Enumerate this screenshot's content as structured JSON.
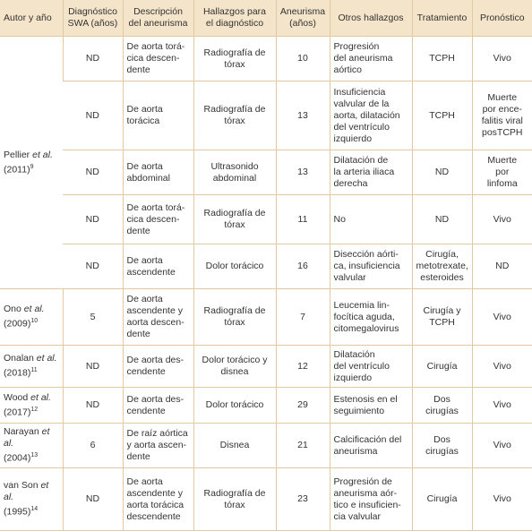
{
  "header": [
    [
      "Autor y año"
    ],
    [
      "Diagnóstico",
      "SWA (años)"
    ],
    [
      "Descripción",
      "del aneurisma"
    ],
    [
      "Hallazgos para",
      "el diagnóstico"
    ],
    [
      "Aneurisma",
      "(años)"
    ],
    [
      "Otros hallazgos"
    ],
    [
      "Tratamiento"
    ],
    [
      "Pronóstico"
    ]
  ],
  "groups": [
    {
      "author": {
        "name": "Pellier",
        "etal": "et al.",
        "year": "(2011)",
        "ref": "9"
      },
      "rows": [
        [
          "ND",
          [
            "De aorta torá-",
            "cica descen-",
            "dente"
          ],
          [
            "Radiografía de",
            "tórax"
          ],
          10,
          [
            "Progresión",
            "del aneurisma",
            "aórtico"
          ],
          [
            "TCPH"
          ],
          [
            "Vivo"
          ]
        ],
        [
          "ND",
          [
            "De aorta",
            "torácica"
          ],
          [
            "Radiografía de",
            "tórax"
          ],
          13,
          [
            "Insuficiencia",
            "valvular de la",
            "aorta, dilatación",
            "del ventrículo",
            "izquierdo"
          ],
          [
            "TCPH"
          ],
          [
            "Muerte",
            "por ence-",
            "falitis viral",
            "posTCPH"
          ]
        ],
        [
          "ND",
          [
            "De aorta",
            "abdominal"
          ],
          [
            "Ultrasonido",
            "abdominal"
          ],
          13,
          [
            "Dilatación de",
            "la arteria iliaca",
            "derecha"
          ],
          [
            "ND"
          ],
          [
            "Muerte",
            "por",
            "linfoma"
          ]
        ],
        [
          "ND",
          [
            "De aorta torá-",
            "cica descen-",
            "dente"
          ],
          [
            "Radiografía de",
            "tórax"
          ],
          11,
          [
            "No"
          ],
          [
            "ND"
          ],
          [
            "Vivo"
          ]
        ],
        [
          "ND",
          [
            "De aorta",
            "ascendente"
          ],
          [
            "Dolor torácico"
          ],
          16,
          [
            "Disección aórti-",
            "ca, insuficiencia",
            "valvular"
          ],
          [
            "Cirugía,",
            "metotrexate,",
            "esteroides"
          ],
          [
            "ND"
          ]
        ]
      ]
    },
    {
      "author": {
        "name": "Ono",
        "etal": "et al.",
        "year": "(2009)",
        "ref": "10"
      },
      "rows": [
        [
          5,
          [
            "De aorta",
            "ascendente y",
            "aorta descen-",
            "dente"
          ],
          [
            "Radiografía de",
            "tórax"
          ],
          7,
          [
            "Leucemia lin-",
            "focítica aguda,",
            "citomegalovirus"
          ],
          [
            "Cirugía y",
            "TCPH"
          ],
          [
            "Vivo"
          ]
        ]
      ]
    },
    {
      "author": {
        "name": "Onalan",
        "etal": "et al.",
        "year": "(2018)",
        "ref": "11"
      },
      "rows": [
        [
          "ND",
          [
            "De aorta des-",
            "cendente"
          ],
          [
            "Dolor torácico y",
            "disnea"
          ],
          12,
          [
            "Dilatación",
            "del ventrículo",
            "izquierdo"
          ],
          [
            "Cirugía"
          ],
          [
            "Vivo"
          ]
        ]
      ]
    },
    {
      "author": {
        "name": "Wood",
        "etal": "et al.",
        "year": "(2017)",
        "ref": "12"
      },
      "rows": [
        [
          "ND",
          [
            "De aorta des-",
            "cendente"
          ],
          [
            "Dolor torácico"
          ],
          29,
          [
            "Estenosis en el",
            "seguimiento"
          ],
          [
            "Dos cirugías"
          ],
          [
            "Vivo"
          ]
        ]
      ]
    },
    {
      "author": {
        "name": "Narayan",
        "etal": "et al.",
        "year": "(2004)",
        "ref": "13"
      },
      "rows": [
        [
          6,
          [
            "De raíz aórtica",
            "y aorta ascen-",
            "dente"
          ],
          [
            "Disnea"
          ],
          21,
          [
            "Calcificación del",
            "aneurisma"
          ],
          [
            "Dos cirugías"
          ],
          [
            "Vivo"
          ]
        ]
      ]
    },
    {
      "author": {
        "name": "van Son",
        "etal": "et al.",
        "year": "(1995)",
        "ref": "14"
      },
      "rows": [
        [
          "ND",
          [
            "De aorta",
            "ascendente y",
            "aorta torácica",
            "descendente"
          ],
          [
            "Radiografía de",
            "tórax"
          ],
          23,
          [
            "Progresión de",
            "aneurisma aór-",
            "tico e insuficien-",
            "cia valvular"
          ],
          [
            "Cirugía"
          ],
          [
            "Vivo"
          ]
        ]
      ]
    }
  ]
}
